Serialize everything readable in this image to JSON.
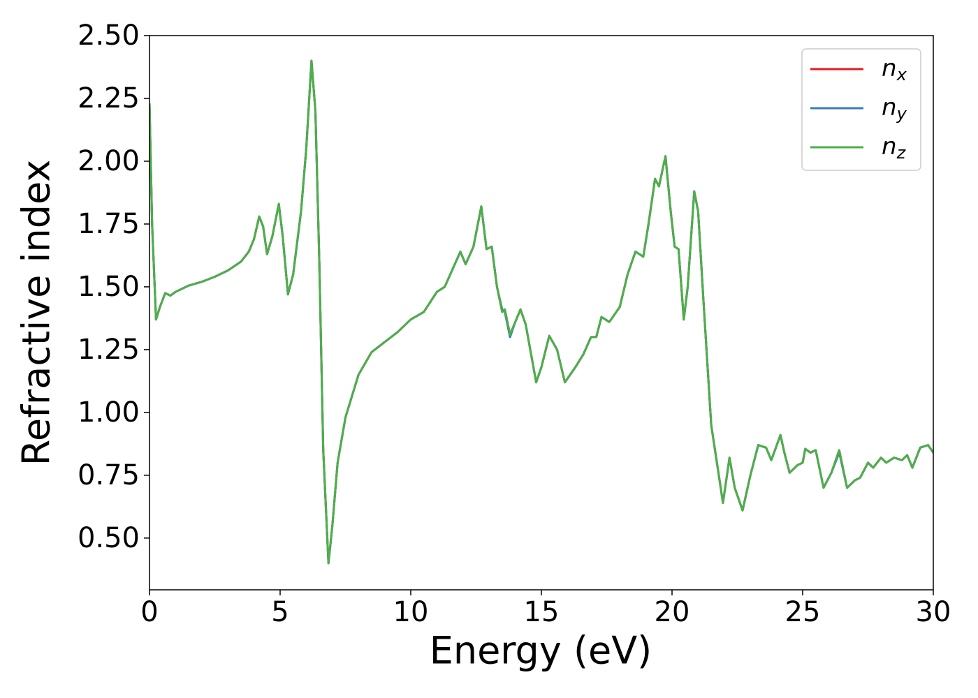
{
  "chart_data": {
    "type": "line",
    "xlabel": "Energy (eV)",
    "ylabel": "Refractive index",
    "x": [
      0,
      0.1,
      0.25,
      0.4,
      0.6,
      0.8,
      1.0,
      1.5,
      2,
      2.5,
      3,
      3.5,
      3.8,
      4.0,
      4.2,
      4.35,
      4.5,
      4.7,
      4.95,
      5.1,
      5.3,
      5.5,
      5.8,
      6.0,
      6.2,
      6.35,
      6.5,
      6.65,
      6.85,
      7.0,
      7.2,
      7.5,
      8.0,
      8.5,
      9.0,
      9.5,
      10.0,
      10.5,
      11.0,
      11.3,
      11.6,
      11.9,
      12.1,
      12.4,
      12.7,
      12.9,
      13.1,
      13.3,
      13.5,
      13.6,
      13.8,
      14.0,
      14.2,
      14.4,
      14.8,
      15.0,
      15.3,
      15.6,
      15.9,
      16.3,
      16.6,
      16.9,
      17.1,
      17.3,
      17.6,
      18.0,
      18.3,
      18.6,
      18.9,
      19.1,
      19.35,
      19.5,
      19.75,
      19.95,
      20.1,
      20.25,
      20.45,
      20.6,
      20.85,
      21.0,
      21.2,
      21.5,
      21.95,
      22.2,
      22.4,
      22.7,
      23.0,
      23.3,
      23.6,
      23.8,
      24.15,
      24.3,
      24.5,
      24.8,
      25.0,
      25.1,
      25.3,
      25.5,
      25.8,
      26.1,
      26.4,
      26.7,
      27.0,
      27.2,
      27.5,
      27.7,
      28.0,
      28.2,
      28.5,
      28.8,
      29.0,
      29.2,
      29.5,
      29.8,
      30.0
    ],
    "series": [
      {
        "name": "nx",
        "color": "#e41a1c",
        "values": [
          2.23,
          1.75,
          1.37,
          1.42,
          1.475,
          1.465,
          1.48,
          1.505,
          1.52,
          1.54,
          1.565,
          1.6,
          1.64,
          1.69,
          1.78,
          1.74,
          1.63,
          1.7,
          1.83,
          1.7,
          1.47,
          1.55,
          1.8,
          2.05,
          2.4,
          2.2,
          1.6,
          0.85,
          0.4,
          0.55,
          0.8,
          0.98,
          1.15,
          1.24,
          1.28,
          1.32,
          1.37,
          1.4,
          1.48,
          1.5,
          1.57,
          1.64,
          1.59,
          1.66,
          1.82,
          1.65,
          1.66,
          1.5,
          1.4,
          1.41,
          1.31,
          1.36,
          1.41,
          1.35,
          1.12,
          1.18,
          1.305,
          1.25,
          1.12,
          1.18,
          1.23,
          1.3,
          1.3,
          1.38,
          1.36,
          1.42,
          1.55,
          1.64,
          1.62,
          1.75,
          1.93,
          1.9,
          2.02,
          1.8,
          1.66,
          1.65,
          1.37,
          1.5,
          1.88,
          1.8,
          1.45,
          0.95,
          0.64,
          0.82,
          0.7,
          0.61,
          0.75,
          0.87,
          0.86,
          0.81,
          0.91,
          0.84,
          0.76,
          0.79,
          0.8,
          0.855,
          0.84,
          0.85,
          0.7,
          0.76,
          0.85,
          0.7,
          0.73,
          0.74,
          0.8,
          0.78,
          0.82,
          0.8,
          0.82,
          0.81,
          0.83,
          0.78,
          0.86,
          0.87,
          0.84
        ]
      },
      {
        "name": "ny",
        "color": "#377eb8",
        "values": [
          2.23,
          1.75,
          1.37,
          1.42,
          1.475,
          1.465,
          1.48,
          1.505,
          1.52,
          1.54,
          1.565,
          1.6,
          1.64,
          1.69,
          1.78,
          1.74,
          1.63,
          1.7,
          1.83,
          1.7,
          1.47,
          1.55,
          1.8,
          2.05,
          2.4,
          2.2,
          1.6,
          0.85,
          0.4,
          0.55,
          0.8,
          0.98,
          1.15,
          1.24,
          1.28,
          1.32,
          1.37,
          1.4,
          1.48,
          1.5,
          1.57,
          1.64,
          1.59,
          1.66,
          1.82,
          1.65,
          1.66,
          1.5,
          1.41,
          1.4,
          1.3,
          1.36,
          1.41,
          1.35,
          1.12,
          1.18,
          1.305,
          1.25,
          1.12,
          1.18,
          1.23,
          1.3,
          1.3,
          1.38,
          1.36,
          1.42,
          1.55,
          1.64,
          1.62,
          1.75,
          1.93,
          1.9,
          2.02,
          1.8,
          1.66,
          1.65,
          1.37,
          1.5,
          1.88,
          1.8,
          1.45,
          0.95,
          0.64,
          0.82,
          0.7,
          0.61,
          0.75,
          0.87,
          0.86,
          0.81,
          0.91,
          0.84,
          0.76,
          0.79,
          0.8,
          0.855,
          0.84,
          0.85,
          0.7,
          0.76,
          0.84,
          0.7,
          0.73,
          0.74,
          0.8,
          0.78,
          0.82,
          0.8,
          0.82,
          0.81,
          0.83,
          0.78,
          0.86,
          0.87,
          0.84
        ]
      },
      {
        "name": "nz",
        "color": "#4daf4a",
        "values": [
          2.23,
          1.75,
          1.37,
          1.42,
          1.475,
          1.465,
          1.48,
          1.505,
          1.52,
          1.54,
          1.565,
          1.6,
          1.64,
          1.69,
          1.78,
          1.74,
          1.63,
          1.7,
          1.83,
          1.7,
          1.47,
          1.55,
          1.8,
          2.05,
          2.4,
          2.2,
          1.6,
          0.85,
          0.4,
          0.55,
          0.8,
          0.98,
          1.15,
          1.24,
          1.28,
          1.32,
          1.37,
          1.4,
          1.48,
          1.5,
          1.57,
          1.64,
          1.59,
          1.66,
          1.82,
          1.65,
          1.66,
          1.5,
          1.4,
          1.41,
          1.31,
          1.36,
          1.41,
          1.35,
          1.12,
          1.18,
          1.305,
          1.25,
          1.12,
          1.18,
          1.23,
          1.3,
          1.3,
          1.38,
          1.36,
          1.42,
          1.55,
          1.64,
          1.62,
          1.75,
          1.93,
          1.9,
          2.02,
          1.8,
          1.66,
          1.65,
          1.37,
          1.5,
          1.88,
          1.8,
          1.45,
          0.95,
          0.64,
          0.82,
          0.7,
          0.61,
          0.75,
          0.87,
          0.86,
          0.81,
          0.91,
          0.84,
          0.76,
          0.79,
          0.8,
          0.855,
          0.84,
          0.85,
          0.7,
          0.76,
          0.85,
          0.7,
          0.73,
          0.74,
          0.8,
          0.78,
          0.82,
          0.8,
          0.82,
          0.81,
          0.83,
          0.78,
          0.86,
          0.87,
          0.84
        ]
      }
    ],
    "xlim": [
      0,
      30
    ],
    "xticks": [
      0,
      5,
      10,
      15,
      20,
      25,
      30
    ],
    "ylim": [
      0.294,
      2.5
    ],
    "yticks": [
      {
        "value": 0.5,
        "label": "0.50"
      },
      0.75,
      {
        "value": 1.0,
        "label": "1.00"
      },
      1.25,
      {
        "value": 1.5,
        "label": "1.50"
      },
      1.75,
      {
        "value": 2.0,
        "label": "2.00"
      },
      2.25,
      {
        "value": 2.5,
        "label": "2.50"
      }
    ],
    "grid": false,
    "legend": "upper right"
  }
}
